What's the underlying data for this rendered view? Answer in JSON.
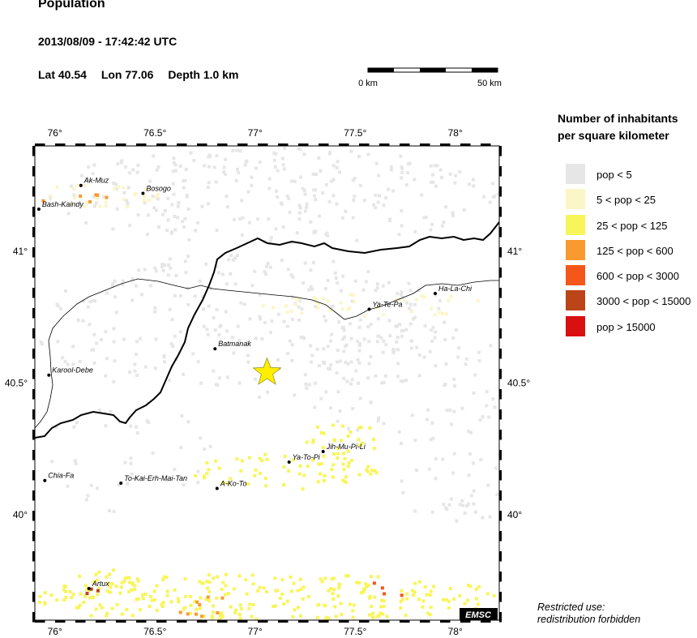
{
  "header": {
    "title": "Population",
    "datetime": "2013/08/09 - 17:42:42 UTC",
    "lat_label": "Lat 40.54",
    "lon_label": "Lon  77.06",
    "depth_label": "Depth  1.0 km"
  },
  "scalebar": {
    "start_label": "0 km",
    "end_label": "50 km"
  },
  "axes": {
    "x_ticks": [
      "76°",
      "76.5°",
      "77°",
      "77.5°",
      "78°"
    ],
    "y_ticks": [
      "41°",
      "40.5°",
      "40°"
    ]
  },
  "map": {
    "lon_range": [
      75.9,
      78.22
    ],
    "lat_range": [
      39.6,
      41.4
    ],
    "epicenter": {
      "lat": 40.54,
      "lon": 77.06,
      "marker_color": "#ffee00"
    },
    "watermark": "EMSC",
    "cities": [
      {
        "name": "Ak-Muz",
        "lat": 41.25,
        "lon": 76.13
      },
      {
        "name": "Bosogo",
        "lat": 41.22,
        "lon": 76.44
      },
      {
        "name": "Bash-Kaindy",
        "lat": 41.16,
        "lon": 75.92
      },
      {
        "name": "Ha-La-Chi",
        "lat": 40.84,
        "lon": 77.9
      },
      {
        "name": "Ya-Te-Pa",
        "lat": 40.78,
        "lon": 77.57
      },
      {
        "name": "Batmanak",
        "lat": 40.63,
        "lon": 76.8
      },
      {
        "name": "Karool-Debe",
        "lat": 40.53,
        "lon": 75.97
      },
      {
        "name": "Jih-Mu-Pi-Li",
        "lat": 40.24,
        "lon": 77.34
      },
      {
        "name": "Ya-To-Pi",
        "lat": 40.2,
        "lon": 77.17
      },
      {
        "name": "Chia-Fa",
        "lat": 40.13,
        "lon": 75.95
      },
      {
        "name": "To-Kai-Erh-Mai-Tan",
        "lat": 40.12,
        "lon": 76.33
      },
      {
        "name": "A-Ko-To",
        "lat": 40.1,
        "lon": 76.81
      },
      {
        "name": "Artux",
        "lat": 39.72,
        "lon": 76.17
      }
    ]
  },
  "legend": {
    "title_line1": "Number of inhabitants",
    "title_line2": "per square kilometer",
    "items": [
      {
        "label": "pop < 5",
        "color": "#e6e6e6"
      },
      {
        "label": "5 < pop < 25",
        "color": "#fbf6c6"
      },
      {
        "label": "25 < pop < 125",
        "color": "#f8f55a"
      },
      {
        "label": "125 < pop < 600",
        "color": "#f89a30"
      },
      {
        "label": "600 < pop < 3000",
        "color": "#f5571b"
      },
      {
        "label": "3000 < pop < 15000",
        "color": "#bb4418"
      },
      {
        "label": "pop > 15000",
        "color": "#d81010"
      }
    ]
  },
  "restriction": {
    "line1": "Restricted use:",
    "line2": "redistribution forbidden"
  }
}
